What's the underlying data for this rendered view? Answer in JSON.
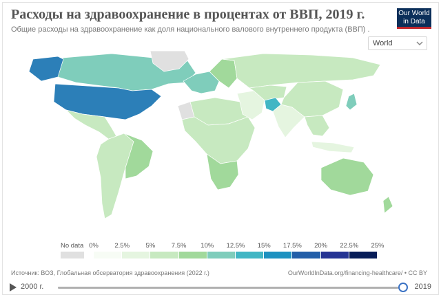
{
  "header": {
    "title": "Расходы на здравоохранение в процентах от ВВП, 2019 г.",
    "subtitle": "Общие расходы на здравоохранение как доля национального валового внутреннего продукта (ВВП) ."
  },
  "logo": {
    "line1": "Our World",
    "line2": "in Data"
  },
  "entity_selector": {
    "value": "World"
  },
  "legend": {
    "no_data_label": "No data",
    "ticks": [
      "0%",
      "2.5%",
      "5%",
      "7.5%",
      "10%",
      "12.5%",
      "15%",
      "17.5%",
      "20%",
      "22.5%",
      "25%"
    ],
    "colors": [
      "#f7fcf5",
      "#e5f5e0",
      "#c7e9c0",
      "#a1d99b",
      "#7fcdbb",
      "#41b6c4",
      "#1d91c0",
      "#225ea8",
      "#253494",
      "#081d58"
    ]
  },
  "footer": {
    "source": "Источник: ВОЗ, Глобальная обсерватория здравоохранения (2022 г.)",
    "link": "OurWorldInData.org/financing-healthcare/ • CC BY"
  },
  "timeline": {
    "start": "2000 г.",
    "end": "2019"
  },
  "map_regions": [
    {
      "name": "canada",
      "fill": "#7fcdbb"
    },
    {
      "name": "united-states",
      "fill": "#2c7fb8"
    },
    {
      "name": "alaska",
      "fill": "#2c7fb8"
    },
    {
      "name": "greenland",
      "fill": "#e0e0e0"
    },
    {
      "name": "mexico-central-america",
      "fill": "#c7e9c0"
    },
    {
      "name": "south-america",
      "fill": "#c7e9c0"
    },
    {
      "name": "brazil",
      "fill": "#a1d99b"
    },
    {
      "name": "western-europe",
      "fill": "#7fcdbb"
    },
    {
      "name": "eastern-europe",
      "fill": "#a1d99b"
    },
    {
      "name": "russia",
      "fill": "#c7e9c0"
    },
    {
      "name": "north-africa",
      "fill": "#c7e9c0"
    },
    {
      "name": "western-sahara",
      "fill": "#e0e0e0"
    },
    {
      "name": "sub-saharan-africa",
      "fill": "#c7e9c0"
    },
    {
      "name": "southern-africa",
      "fill": "#a1d99b"
    },
    {
      "name": "middle-east",
      "fill": "#e5f5e0"
    },
    {
      "name": "central-asia",
      "fill": "#c7e9c0"
    },
    {
      "name": "afghanistan",
      "fill": "#41b6c4"
    },
    {
      "name": "south-asia",
      "fill": "#e5f5e0"
    },
    {
      "name": "china",
      "fill": "#c7e9c0"
    },
    {
      "name": "japan",
      "fill": "#7fcdbb"
    },
    {
      "name": "southeast-asia",
      "fill": "#c7e9c0"
    },
    {
      "name": "indonesia",
      "fill": "#e5f5e0"
    },
    {
      "name": "australia",
      "fill": "#a1d99b"
    },
    {
      "name": "new-zealand",
      "fill": "#a1d99b"
    }
  ]
}
